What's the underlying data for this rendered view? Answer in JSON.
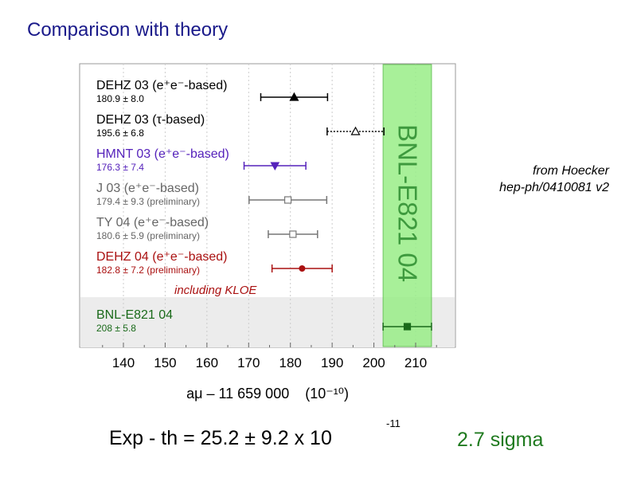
{
  "slide": {
    "title": "Comparison with theory",
    "reference_line1": "from Hoecker",
    "reference_line2": "hep-ph/0410081 v2",
    "result_main": "Exp - th  =  25.2 ± 9.2  x  10",
    "result_exponent": "-11",
    "significance": "2.7 sigma"
  },
  "chart_data": {
    "type": "scatter",
    "xlabel": "aμ – 11 659 000    (10⁻¹⁰)",
    "xlim": [
      130,
      222
    ],
    "xticks": [
      140,
      150,
      160,
      170,
      180,
      190,
      200,
      210
    ],
    "grid": true,
    "band": {
      "label": "BNL-E821 04",
      "center": 208,
      "error": 5.8,
      "color": "#99ee88"
    },
    "annotation": "including KLOE",
    "series": [
      {
        "name": "DEHZ 03 (e⁺e⁻-based)",
        "sub": "180.9 ± 8.0",
        "value": 180.9,
        "error": 8.0,
        "marker": "triangle-filled",
        "color": "#000000",
        "dotted": false
      },
      {
        "name": "DEHZ 03 (τ-based)",
        "sub": "195.6 ± 6.8",
        "value": 195.6,
        "error": 6.8,
        "marker": "triangle-open",
        "color": "#000000",
        "dotted": true
      },
      {
        "name": "HMNT 03 (e⁺e⁻-based)",
        "sub": "176.3 ± 7.4",
        "value": 176.3,
        "error": 7.4,
        "marker": "triangle-down-filled",
        "color": "#5522bb",
        "dotted": false
      },
      {
        "name": "J 03 (e⁺e⁻-based)",
        "sub": "179.4 ± 9.3  (preliminary)",
        "value": 179.4,
        "error": 9.3,
        "marker": "square-open",
        "color": "#777777",
        "dotted": false
      },
      {
        "name": "TY 04 (e⁺e⁻-based)",
        "sub": "180.6 ± 5.9  (preliminary)",
        "value": 180.6,
        "error": 5.9,
        "marker": "square-open",
        "color": "#777777",
        "dotted": false
      },
      {
        "name": "DEHZ 04 (e⁺e⁻-based)",
        "sub": "182.8 ± 7.2  (preliminary)",
        "value": 182.8,
        "error": 7.2,
        "marker": "circle-filled",
        "color": "#aa1111",
        "dotted": false
      },
      {
        "name": "BNL-E821 04",
        "sub": "208 ± 5.8",
        "value": 208,
        "error": 5.8,
        "marker": "square-filled",
        "color": "#1a6a1a",
        "dotted": false
      }
    ]
  }
}
